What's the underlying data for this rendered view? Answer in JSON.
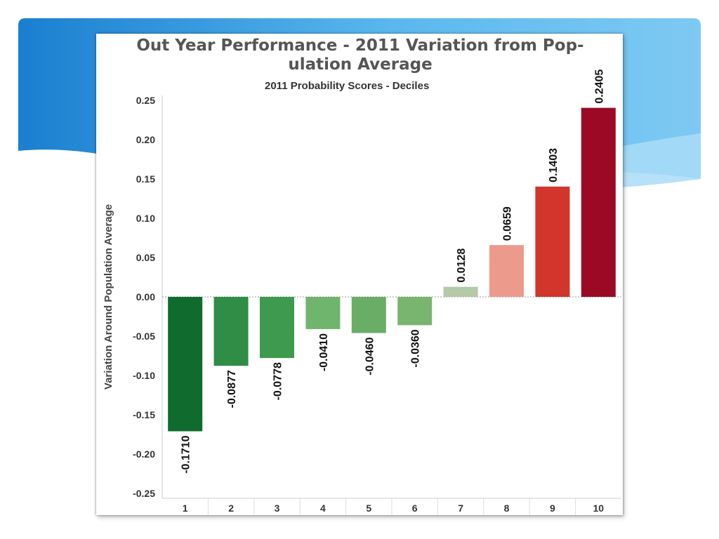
{
  "slide": {
    "accent_colors": [
      "#1a7fd0",
      "#5ab8ee",
      "#a9dcf7"
    ]
  },
  "chart_data": {
    "type": "bar",
    "title": "Out Year Performance - 2011 Variation from Pop-ulation Average",
    "title_lines": [
      "Out Year Performance - 2011 Variation from Pop-",
      "ulation Average"
    ],
    "subtitle": "2011 Probability Scores - Deciles",
    "xlabel": "",
    "ylabel": "Variation Around Population Average",
    "categories": [
      "1",
      "2",
      "3",
      "4",
      "5",
      "6",
      "7",
      "8",
      "9",
      "10"
    ],
    "values": [
      -0.171,
      -0.0877,
      -0.0778,
      -0.041,
      -0.046,
      -0.036,
      0.0128,
      0.0659,
      0.1403,
      0.2405
    ],
    "data_labels": [
      "-0.1710",
      "-0.0877",
      "-0.0778",
      "-0.0410",
      "-0.0460",
      "-0.0360",
      "0.0128",
      "0.0659",
      "0.1403",
      "0.2405"
    ],
    "colors": [
      "#0f6b2e",
      "#2f8d45",
      "#3d9a4e",
      "#6fb56d",
      "#6aad66",
      "#79b56f",
      "#b3c9a7",
      "#ec9a8c",
      "#d2352c",
      "#9a0a24"
    ],
    "ylim": [
      -0.25,
      0.25
    ],
    "yticks": [
      0.25,
      0.2,
      0.15,
      0.1,
      0.05,
      0.0,
      -0.05,
      -0.1,
      -0.15,
      -0.2,
      -0.25
    ],
    "ytick_labels": [
      "0.25",
      "0.20",
      "0.15",
      "0.10",
      "0.05",
      "0.00",
      "-0.05",
      "-0.10",
      "-0.15",
      "-0.20",
      "-0.25"
    ],
    "grid": false,
    "legend": "none"
  }
}
